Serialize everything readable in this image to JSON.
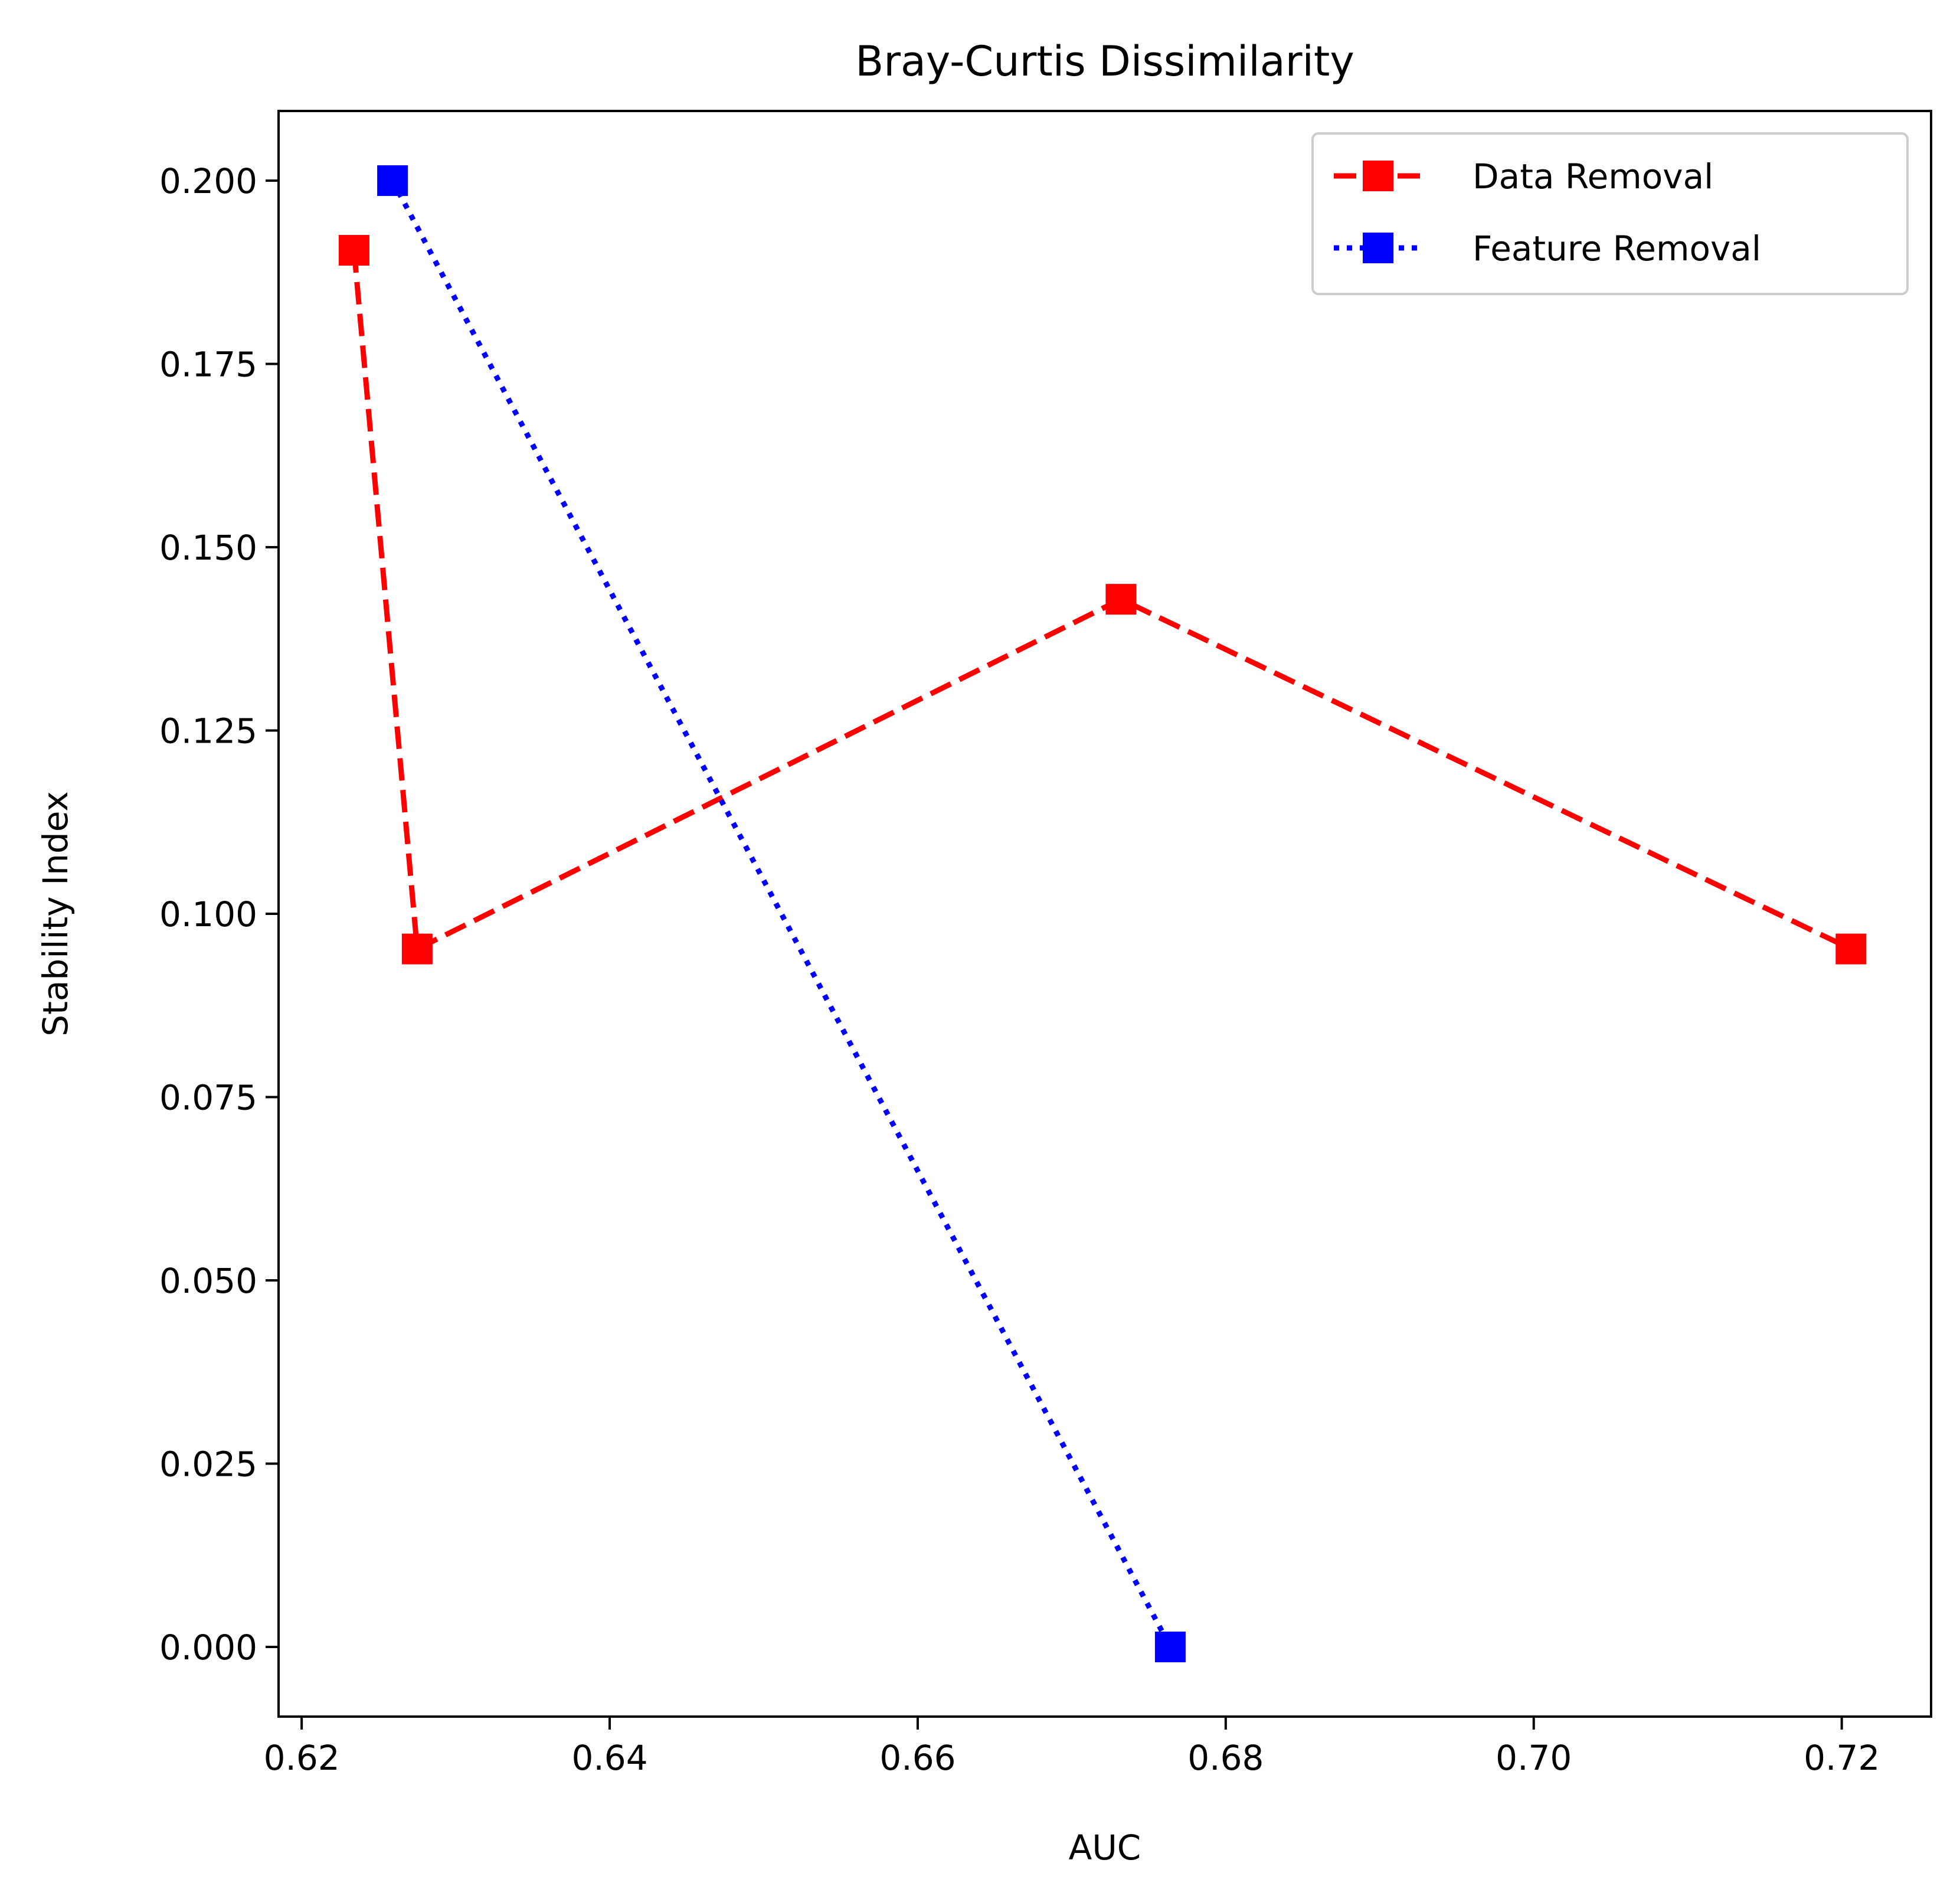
{
  "chart_data": {
    "type": "line",
    "title": "Bray-Curtis Dissimilarity",
    "xlabel": "AUC",
    "ylabel": "Stability Index",
    "xlim": [
      0.6185,
      0.7258
    ],
    "ylim": [
      -0.0095,
      0.2095
    ],
    "xticks": [
      0.62,
      0.64,
      0.66,
      0.68,
      0.7,
      0.72
    ],
    "xtick_labels": [
      "0.62",
      "0.64",
      "0.66",
      "0.68",
      "0.70",
      "0.72"
    ],
    "yticks": [
      0.0,
      0.025,
      0.05,
      0.075,
      0.1,
      0.125,
      0.15,
      0.175,
      0.2
    ],
    "ytick_labels": [
      "0.000",
      "0.025",
      "0.050",
      "0.075",
      "0.100",
      "0.125",
      "0.150",
      "0.175",
      "0.200"
    ],
    "grid": false,
    "legend_position": "top-right",
    "series": [
      {
        "name": "Data Removal",
        "color": "#ff0000",
        "line_style": "dashed",
        "marker": "square",
        "x": [
          0.6234,
          0.6275,
          0.6732,
          0.7206
        ],
        "y": [
          0.1905,
          0.0952,
          0.1429,
          0.0952
        ]
      },
      {
        "name": "Feature Removal",
        "color": "#0000ff",
        "line_style": "dotted",
        "marker": "square",
        "x": [
          0.6259,
          0.6764
        ],
        "y": [
          0.2,
          0.0
        ]
      }
    ]
  }
}
